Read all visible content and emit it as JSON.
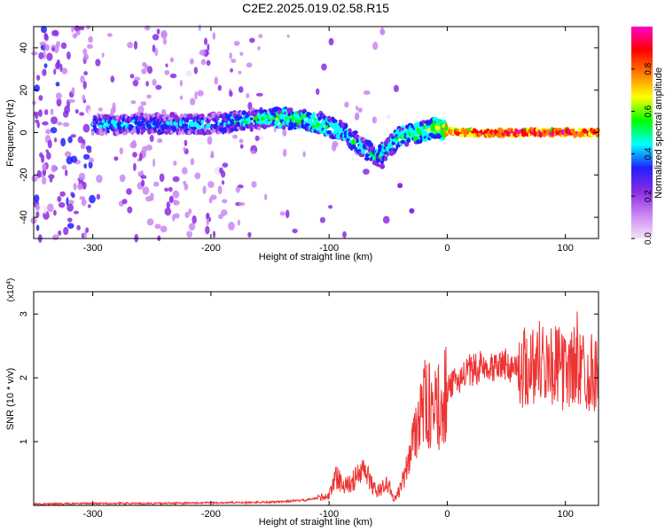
{
  "title": "C2E2.2025.019.02.58.R15",
  "chart_data": [
    {
      "type": "heatmap",
      "xlabel": "Height of straight line (km)",
      "ylabel": "Frequency (Hz)",
      "xlim": [
        -350,
        128
      ],
      "ylim": [
        -50,
        50
      ],
      "xticks": [
        "-300",
        "-200",
        "-100",
        "0",
        "100"
      ],
      "yticks": [
        "-40",
        "-20",
        "0",
        "20",
        "40"
      ],
      "colorbar": {
        "label": "Normalized spectral amplitude",
        "range": [
          0,
          1
        ],
        "ticks": [
          "0.0",
          "0.2",
          "0.4",
          "0.6",
          "0.8"
        ],
        "colormap": [
          "#f4e4fa",
          "#c987f2",
          "#8a2be2",
          "#2020ff",
          "#00ffff",
          "#00ff00",
          "#ffff00",
          "#ff7f00",
          "#ff0000",
          "#ff00c8"
        ]
      },
      "ridge": [
        {
          "x": -300,
          "freq": 4,
          "amp": 0.4
        },
        {
          "x": -250,
          "freq": 4,
          "amp": 0.4
        },
        {
          "x": -200,
          "freq": 4,
          "amp": 0.4
        },
        {
          "x": -150,
          "freq": 7,
          "amp": 0.5
        },
        {
          "x": -120,
          "freq": 6,
          "amp": 0.55
        },
        {
          "x": -90,
          "freq": 1,
          "amp": 0.5
        },
        {
          "x": -60,
          "freq": -12,
          "amp": 0.45
        },
        {
          "x": -40,
          "freq": -2,
          "amp": 0.5
        },
        {
          "x": -10,
          "freq": 2,
          "amp": 0.6
        },
        {
          "x": 10,
          "freq": 0,
          "amp": 0.9
        },
        {
          "x": 60,
          "freq": 0,
          "amp": 0.95
        },
        {
          "x": 128,
          "freq": 0,
          "amp": 0.95
        }
      ],
      "branch": [
        {
          "x": -65,
          "freq": -8
        },
        {
          "x": -55,
          "freq": -16
        },
        {
          "x": -40,
          "freq": -25
        },
        {
          "x": -30,
          "freq": -37
        }
      ]
    },
    {
      "type": "line",
      "xlabel": "Height of straight line (km)",
      "ylabel": "SNR (10 * v/v)",
      "multiplier": "(x10^4)",
      "xlim": [
        -350,
        128
      ],
      "ylim": [
        0,
        3.35
      ],
      "xticks": [
        "-300",
        "-200",
        "-100",
        "0",
        "100"
      ],
      "yticks": [
        "1",
        "2",
        "3"
      ],
      "series": [
        {
          "color": "#ee3333",
          "x": [
            -350,
            -300,
            -250,
            -200,
            -150,
            -120,
            -100,
            -95,
            -85,
            -70,
            -60,
            -50,
            -45,
            -40,
            -35,
            -30,
            -25,
            -20,
            -15,
            -10,
            -5,
            0,
            10,
            20,
            30,
            40,
            50,
            60,
            70,
            80,
            90,
            100,
            110,
            120,
            128
          ],
          "y": [
            0.02,
            0.03,
            0.03,
            0.04,
            0.05,
            0.08,
            0.15,
            0.45,
            0.3,
            0.55,
            0.2,
            0.35,
            0.08,
            0.25,
            0.5,
            1.0,
            1.4,
            1.6,
            1.55,
            1.45,
            1.6,
            1.8,
            2.0,
            2.1,
            2.2,
            2.2,
            2.2,
            2.15,
            2.2,
            2.3,
            2.2,
            2.1,
            2.2,
            2.1,
            2.1
          ]
        }
      ]
    }
  ]
}
